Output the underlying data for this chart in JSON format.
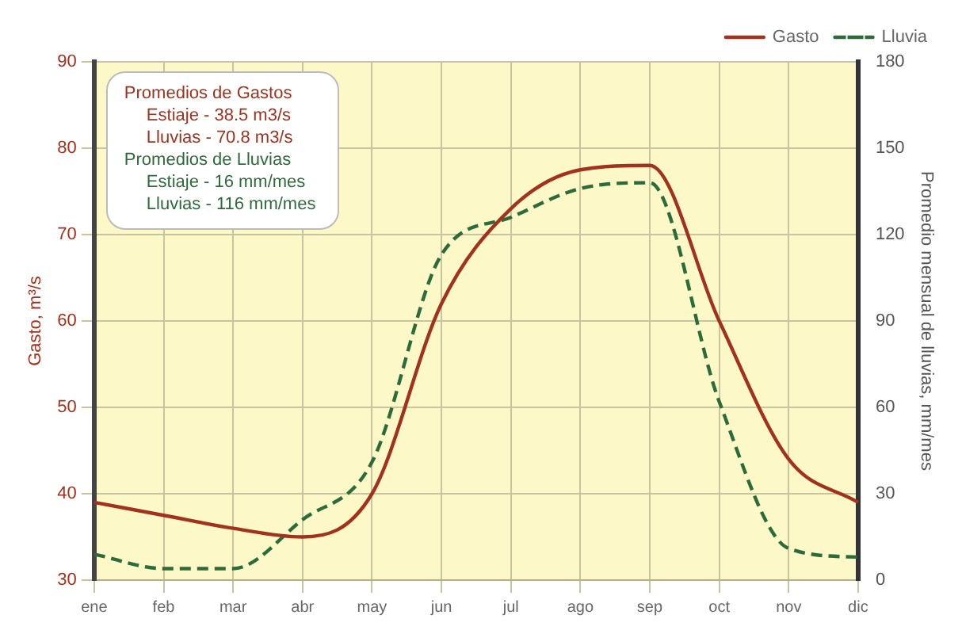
{
  "chart_data": {
    "type": "line",
    "categories": [
      "ene",
      "feb",
      "mar",
      "abr",
      "may",
      "jun",
      "jul",
      "ago",
      "sep",
      "oct",
      "nov",
      "dic"
    ],
    "series": [
      {
        "name": "Gasto",
        "color": "#a0321e",
        "line_style": "solid",
        "values": [
          39,
          37.5,
          36,
          35,
          40,
          62,
          73,
          77.5,
          78,
          60,
          44,
          39
        ]
      },
      {
        "name": "Lluvia",
        "color": "#2e6b3a",
        "line_style": "dashed",
        "axis": "y2",
        "values": [
          9,
          4,
          4,
          21,
          41,
          113,
          126,
          136,
          138,
          62,
          11,
          8
        ]
      }
    ],
    "ylabel": "Gasto, m³/s",
    "y2label": "Promedio mensual de lluvias, mm/mes",
    "ylim": [
      30,
      90
    ],
    "yticks": [
      30,
      40,
      50,
      60,
      70,
      80,
      90
    ],
    "y2lim": [
      0,
      180
    ],
    "y2ticks": [
      0,
      30,
      60,
      90,
      120,
      150,
      180
    ],
    "annotations": [
      "Promedios de Gastos",
      "Estiaje - 38.5 m3/s",
      "Lluvias - 70.8 m3/s",
      "Promedios de Lluvias",
      "Estiaje - 16 mm/mes",
      "Lluvias - 116 mm/mes"
    ],
    "grid": true,
    "legend": "top right",
    "marker": "none"
  }
}
